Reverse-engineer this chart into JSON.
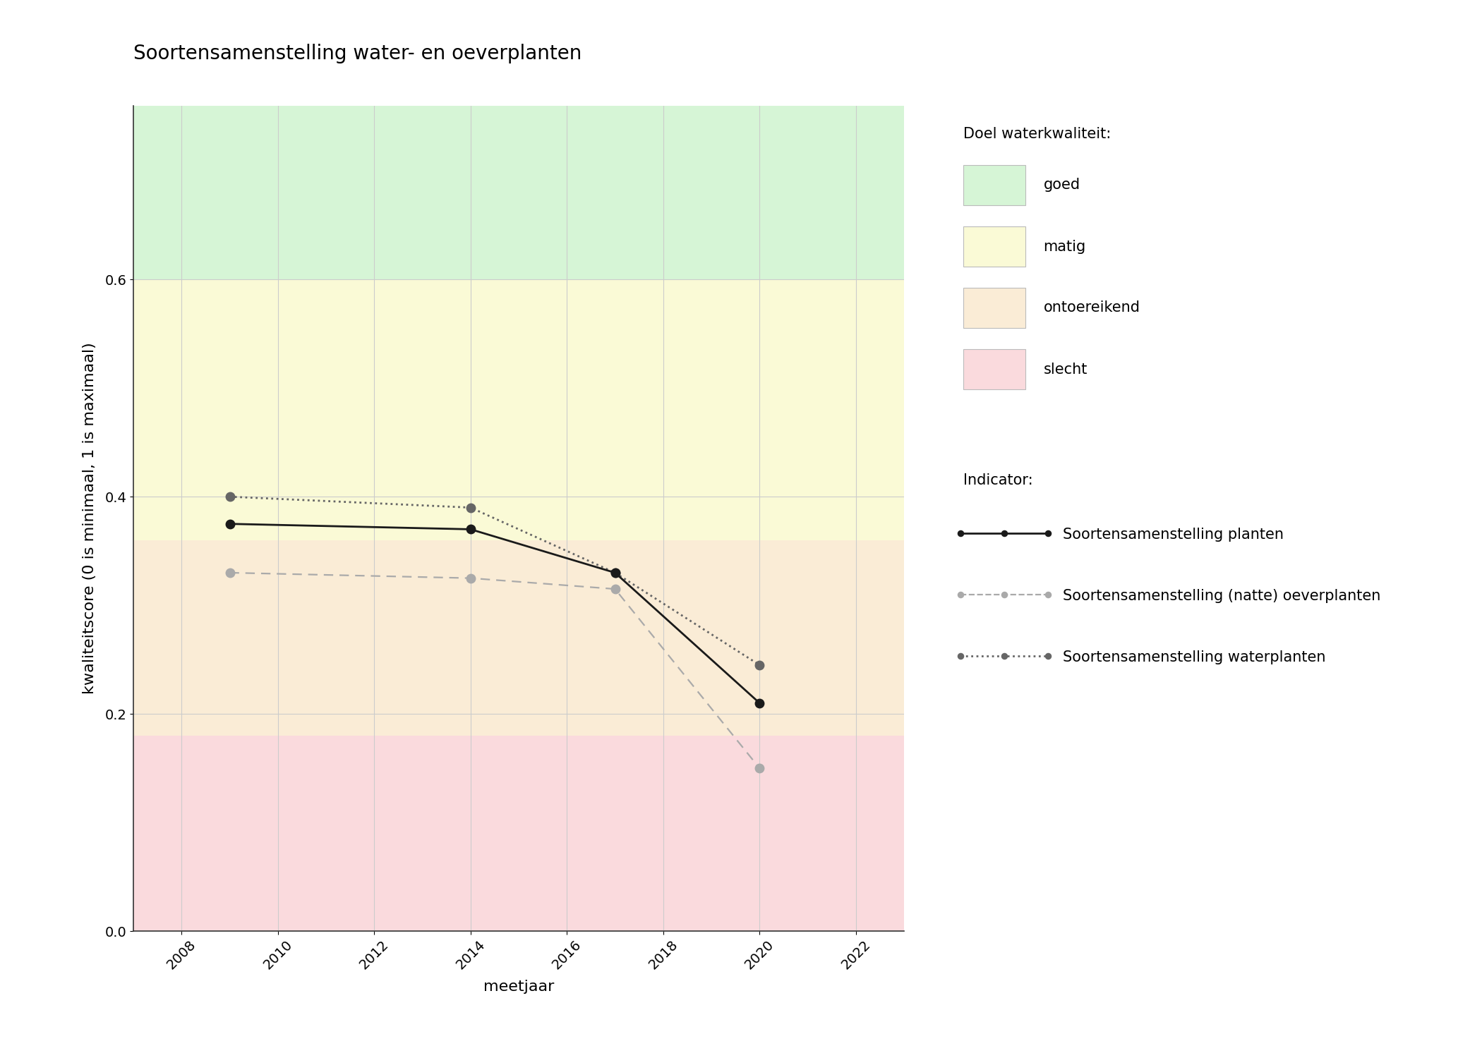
{
  "title": "Soortensamenstelling water- en oeverplanten",
  "xlabel": "meetjaar",
  "ylabel": "kwaliteitscore (0 is minimaal, 1 is maximaal)",
  "xlim": [
    2007,
    2023
  ],
  "ylim": [
    0.0,
    0.76
  ],
  "xticks": [
    2008,
    2010,
    2012,
    2014,
    2016,
    2018,
    2020,
    2022
  ],
  "yticks": [
    0.0,
    0.2,
    0.4,
    0.6
  ],
  "bg_colors": [
    {
      "label": "goed",
      "color": "#d6f5d6",
      "ymin": 0.6,
      "ymax": 0.76
    },
    {
      "label": "matig",
      "color": "#fafad6",
      "ymin": 0.36,
      "ymax": 0.6
    },
    {
      "label": "ontoereikend",
      "color": "#faecd6",
      "ymin": 0.18,
      "ymax": 0.36
    },
    {
      "label": "slecht",
      "color": "#fadadd",
      "ymin": 0.0,
      "ymax": 0.18
    }
  ],
  "line_planten": {
    "years": [
      2009,
      2014,
      2017,
      2020
    ],
    "values": [
      0.375,
      0.37,
      0.33,
      0.21
    ],
    "color": "#1a1a1a",
    "linestyle": "solid",
    "linewidth": 2.0,
    "markersize": 9,
    "label": "Soortensamenstelling planten"
  },
  "line_oeverplanten": {
    "years": [
      2009,
      2014,
      2017,
      2020
    ],
    "values": [
      0.33,
      0.325,
      0.315,
      0.15
    ],
    "color": "#aaaaaa",
    "linestyle": "dashed",
    "linewidth": 1.6,
    "markersize": 9,
    "label": "Soortensamenstelling (natte) oeverplanten"
  },
  "line_waterplanten": {
    "years": [
      2009,
      2014,
      2017,
      2020
    ],
    "values": [
      0.4,
      0.39,
      0.33,
      0.245
    ],
    "color": "#666666",
    "linestyle": "dotted",
    "linewidth": 2.0,
    "markersize": 9,
    "label": "Soortensamenstelling waterplanten"
  },
  "legend_quality_title": "Doel waterkwaliteit:",
  "legend_indicator_title": "Indicator:",
  "background_color": "#ffffff",
  "grid_color": "#cccccc",
  "title_fontsize": 20,
  "axis_label_fontsize": 16,
  "tick_fontsize": 14,
  "legend_fontsize": 15
}
